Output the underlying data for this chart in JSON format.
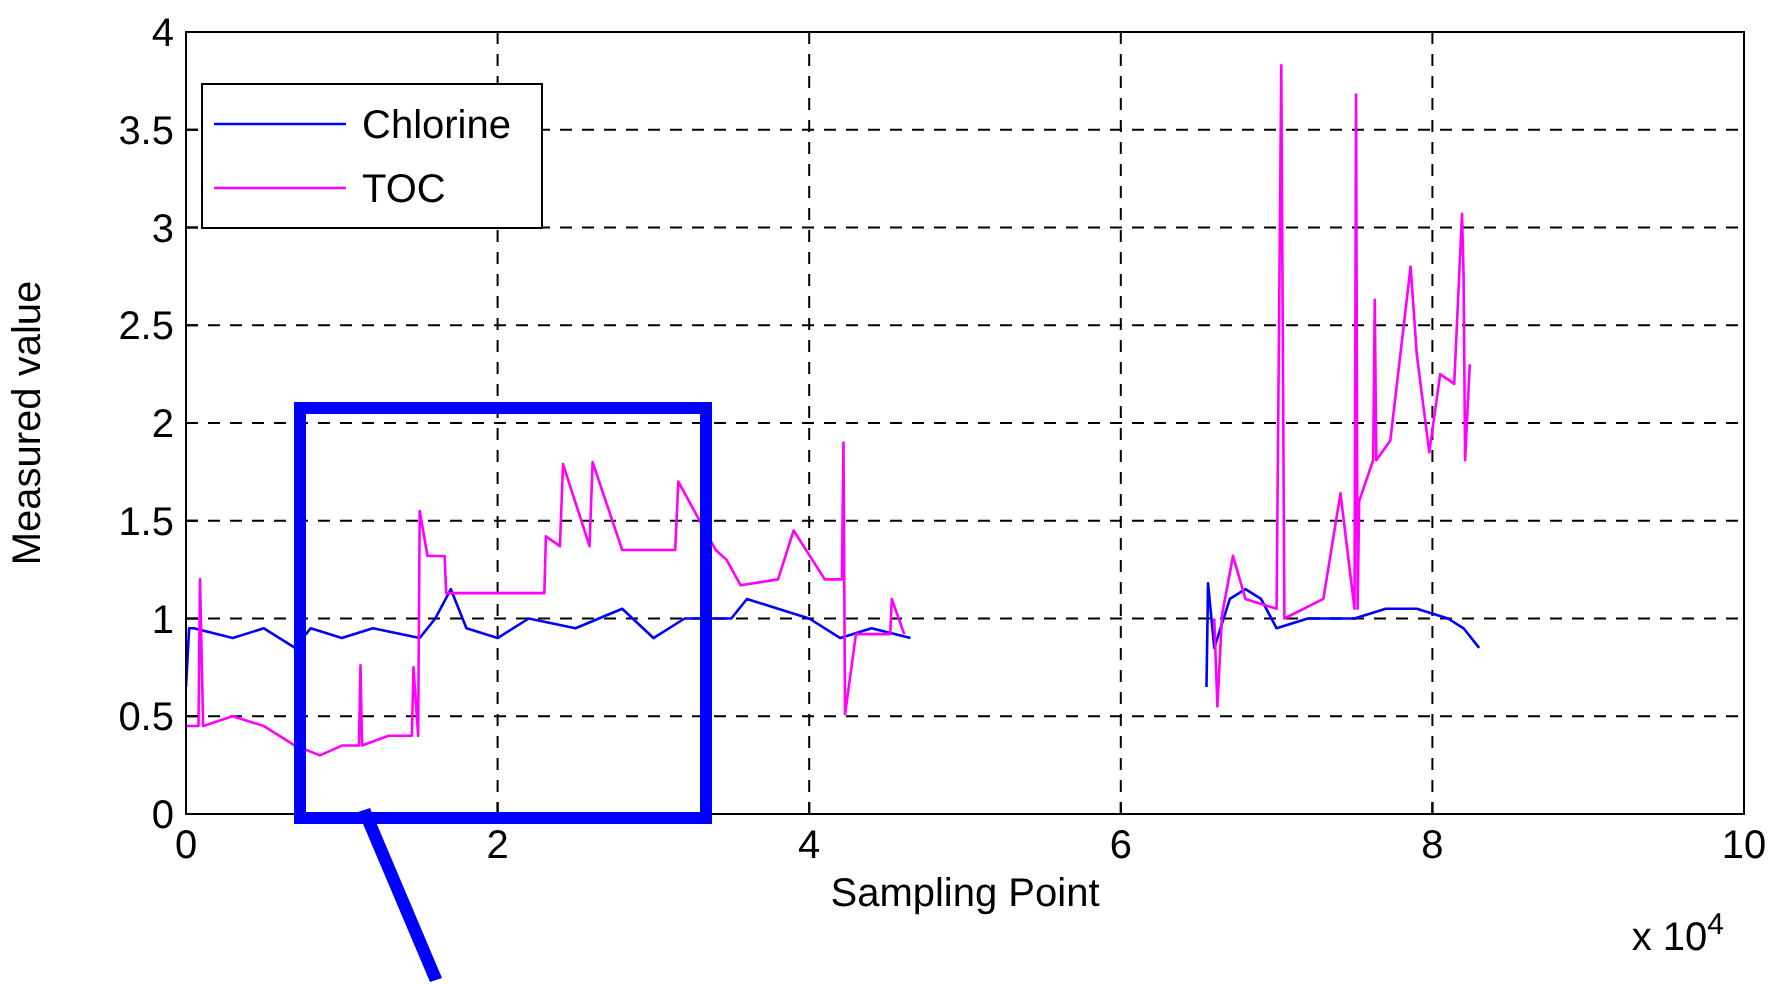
{
  "chart_data": {
    "type": "line",
    "xlabel": "Sampling Point",
    "ylabel": "Measured value",
    "annotations": [
      "x 10$^{4}$"
    ],
    "xlim": [
      0,
      10
    ],
    "xticks": [
      0,
      2,
      4,
      6,
      8,
      10
    ],
    "ylim": [
      0,
      4
    ],
    "yticks": [
      0,
      0.5,
      1,
      1.5,
      2,
      2.5,
      3,
      3.5,
      4
    ],
    "grid": true,
    "legend": "top left",
    "marker": "none",
    "line_style": "solid",
    "series": [
      {
        "name": "Chlorine",
        "color": "#0000ff",
        "x": [
          0,
          0.02,
          0.05,
          0.3,
          0.5,
          0.7,
          0.8,
          1.0,
          1.2,
          1.5,
          1.6,
          1.7,
          1.8,
          2.0,
          2.2,
          2.5,
          2.8,
          3.0,
          3.2,
          3.5,
          3.6,
          3.8,
          4.0,
          4.2,
          4.4,
          4.65,
          5.5,
          6.55,
          6.56,
          6.6,
          6.7,
          6.8,
          6.9,
          7.0,
          7.2,
          7.5,
          7.7,
          7.9,
          8.1,
          8.2,
          8.3
        ],
        "values": [
          0.65,
          0.95,
          0.95,
          0.9,
          0.95,
          0.85,
          0.95,
          0.9,
          0.95,
          0.9,
          1.0,
          1.15,
          0.95,
          0.9,
          1.0,
          0.95,
          1.05,
          0.9,
          1.0,
          1.0,
          1.1,
          1.05,
          1.0,
          0.9,
          0.95,
          0.9,
          null,
          0.65,
          1.18,
          0.85,
          1.1,
          1.15,
          1.1,
          0.95,
          1.0,
          1.0,
          1.05,
          1.05,
          1.0,
          0.95,
          0.85
        ]
      },
      {
        "name": "TOC",
        "color": "#ff00ff",
        "x": [
          0,
          0.08,
          0.09,
          0.11,
          0.3,
          0.5,
          0.7,
          0.86,
          1.0,
          1.11,
          1.12,
          1.13,
          1.3,
          1.45,
          1.46,
          1.49,
          1.5,
          1.55,
          1.66,
          1.67,
          2.3,
          2.31,
          2.4,
          2.42,
          2.59,
          2.61,
          2.8,
          3.14,
          3.16,
          3.4,
          3.47,
          3.56,
          3.8,
          3.9,
          4.1,
          4.21,
          4.22,
          4.23,
          4.3,
          4.52,
          4.53,
          4.61,
          5.5,
          6.6,
          6.62,
          6.65,
          6.72,
          6.8,
          7.0,
          7.03,
          7.05,
          7.3,
          7.41,
          7.5,
          7.51,
          7.52,
          7.53,
          7.62,
          7.63,
          7.64,
          7.73,
          7.86,
          7.9,
          7.98,
          8.05,
          8.14,
          8.19,
          8.2,
          8.21,
          8.24
        ],
        "values": [
          0.45,
          0.45,
          1.2,
          0.45,
          0.5,
          0.45,
          0.35,
          0.3,
          0.35,
          0.35,
          0.76,
          0.35,
          0.4,
          0.4,
          0.75,
          0.4,
          1.55,
          1.32,
          1.32,
          1.13,
          1.13,
          1.42,
          1.37,
          1.79,
          1.37,
          1.8,
          1.35,
          1.35,
          1.7,
          1.35,
          1.3,
          1.17,
          1.2,
          1.45,
          1.2,
          1.2,
          1.9,
          0.51,
          0.92,
          0.92,
          1.1,
          0.92,
          null,
          1.0,
          0.55,
          1.02,
          1.32,
          1.1,
          1.05,
          3.83,
          1.0,
          1.1,
          1.64,
          1.05,
          3.68,
          1.05,
          1.6,
          1.81,
          2.63,
          1.81,
          1.91,
          2.8,
          2.35,
          1.85,
          2.25,
          2.2,
          3.07,
          2.76,
          1.81,
          2.3
        ]
      }
    ]
  }
}
